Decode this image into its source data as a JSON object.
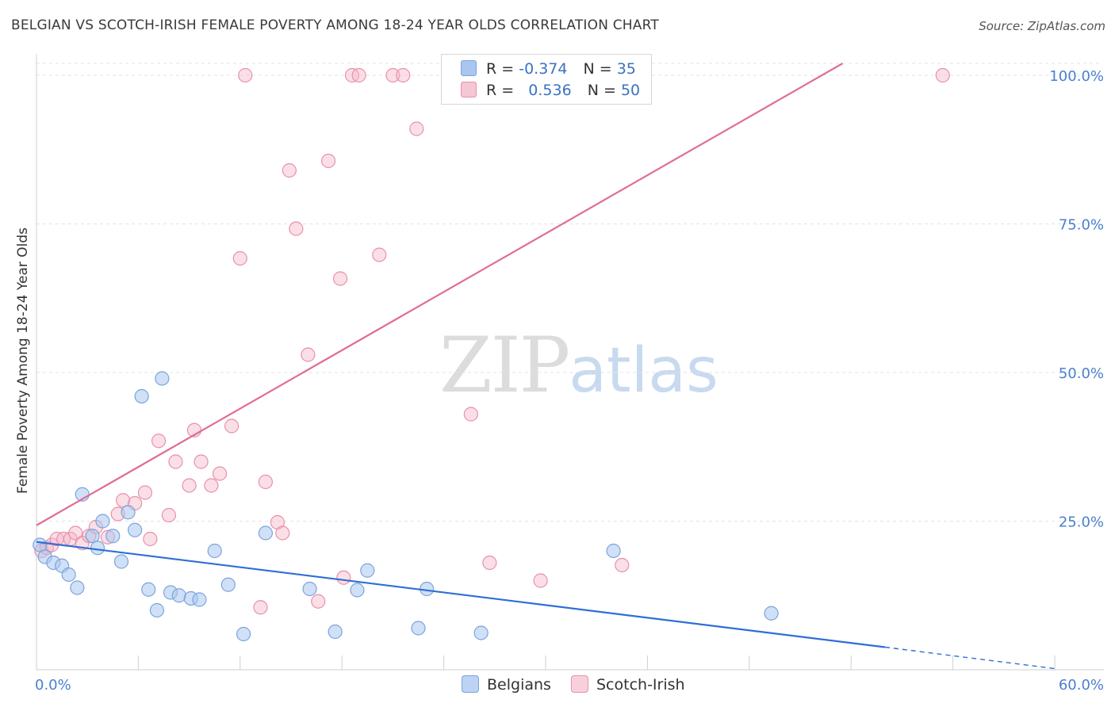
{
  "title": "BELGIAN VS SCOTCH-IRISH FEMALE POVERTY AMONG 18-24 YEAR OLDS CORRELATION CHART",
  "source": "Source: ZipAtlas.com",
  "watermark": {
    "zip": "ZIP",
    "atlas": "atlas"
  },
  "legend": {
    "r_label": "R =",
    "n_label": "N =",
    "rows": [
      {
        "r": "-0.374",
        "n": "35",
        "color": "#a9c6ef"
      },
      {
        "r": "0.536",
        "n": "50",
        "color": "#f5b7c9"
      }
    ]
  },
  "colors": {
    "belgian_fill": "#a9c6ef",
    "belgian_stroke": "#7aa4dc",
    "belgian_line": "#2e6fd2",
    "scotch_fill": "#f5b7c9",
    "scotch_stroke": "#e98fab",
    "scotch_line": "#e06d95"
  },
  "chart_data": {
    "type": "scatter",
    "title": "BELGIAN VS SCOTCH-IRISH FEMALE POVERTY AMONG 18-24 YEAR OLDS CORRELATION CHART",
    "xlabel": "",
    "ylabel": "Female Poverty Among 18-24 Year Olds",
    "xlim": [
      0,
      60
    ],
    "ylim": [
      0,
      102
    ],
    "x_tick_labels": [
      "0.0%",
      "60.0%"
    ],
    "y_ticks": [
      25,
      50,
      75,
      100
    ],
    "y_tick_labels": [
      "25.0%",
      "50.0%",
      "75.0%",
      "100.0%"
    ],
    "grid": true,
    "legend_position": "top-center",
    "series": [
      {
        "name": "Belgians",
        "r": -0.374,
        "n": 35,
        "trend": {
          "x0": 0,
          "y0": 21.5,
          "x1": 50,
          "y1": 3.8,
          "dashed_to_x": 60,
          "dashed_y1": 0.2
        },
        "points": [
          [
            0.2,
            21
          ],
          [
            0.5,
            19
          ],
          [
            1.0,
            18
          ],
          [
            1.5,
            17.5
          ],
          [
            1.9,
            16
          ],
          [
            2.4,
            13.8
          ],
          [
            2.7,
            29.5
          ],
          [
            3.3,
            22.5
          ],
          [
            3.6,
            20.5
          ],
          [
            3.9,
            25
          ],
          [
            4.5,
            22.5
          ],
          [
            5.0,
            18.2
          ],
          [
            5.4,
            26.5
          ],
          [
            5.8,
            23.5
          ],
          [
            6.2,
            46
          ],
          [
            6.6,
            13.5
          ],
          [
            7.1,
            10
          ],
          [
            7.4,
            49
          ],
          [
            7.9,
            13
          ],
          [
            8.4,
            12.5
          ],
          [
            9.1,
            12
          ],
          [
            9.6,
            11.8
          ],
          [
            10.5,
            20
          ],
          [
            11.3,
            14.3
          ],
          [
            12.2,
            6
          ],
          [
            13.5,
            23
          ],
          [
            16.1,
            13.6
          ],
          [
            17.6,
            6.4
          ],
          [
            18.9,
            13.4
          ],
          [
            19.5,
            16.7
          ],
          [
            22.5,
            7
          ],
          [
            23.0,
            13.6
          ],
          [
            26.2,
            6.2
          ],
          [
            34.0,
            20
          ],
          [
            43.3,
            9.5
          ]
        ]
      },
      {
        "name": "Scotch-Irish",
        "r": 0.536,
        "n": 50,
        "trend": {
          "x0": 0,
          "y0": 24.3,
          "x1": 47.5,
          "y1": 102
        },
        "points": [
          [
            0.3,
            20
          ],
          [
            0.6,
            20.5
          ],
          [
            0.9,
            21
          ],
          [
            1.2,
            22
          ],
          [
            1.6,
            22
          ],
          [
            2.0,
            22
          ],
          [
            2.3,
            23
          ],
          [
            2.7,
            21.3
          ],
          [
            3.1,
            22.5
          ],
          [
            3.5,
            24
          ],
          [
            4.2,
            22.3
          ],
          [
            4.8,
            26.2
          ],
          [
            5.1,
            28.5
          ],
          [
            5.8,
            28
          ],
          [
            6.4,
            29.8
          ],
          [
            6.7,
            22
          ],
          [
            7.2,
            38.5
          ],
          [
            7.8,
            26
          ],
          [
            8.2,
            35
          ],
          [
            9.0,
            31
          ],
          [
            9.3,
            40.3
          ],
          [
            9.7,
            35
          ],
          [
            10.3,
            31
          ],
          [
            10.8,
            33
          ],
          [
            11.5,
            41
          ],
          [
            12.0,
            69.2
          ],
          [
            12.3,
            100
          ],
          [
            13.2,
            10.5
          ],
          [
            13.5,
            31.6
          ],
          [
            14.2,
            24.8
          ],
          [
            14.5,
            23
          ],
          [
            14.9,
            84
          ],
          [
            15.3,
            74.2
          ],
          [
            16.0,
            53
          ],
          [
            16.6,
            11.5
          ],
          [
            17.2,
            85.6
          ],
          [
            17.9,
            65.8
          ],
          [
            18.1,
            15.5
          ],
          [
            18.6,
            100
          ],
          [
            19.0,
            100
          ],
          [
            20.2,
            69.8
          ],
          [
            21.0,
            100
          ],
          [
            21.6,
            100
          ],
          [
            22.4,
            91
          ],
          [
            25.6,
            43
          ],
          [
            26.7,
            18
          ],
          [
            27.6,
            100
          ],
          [
            29.7,
            15
          ],
          [
            34.5,
            17.6
          ],
          [
            53.4,
            100
          ]
        ]
      }
    ]
  },
  "bottom_legend": [
    {
      "name": "Belgians",
      "color": "#a9c6ef"
    },
    {
      "name": "Scotch-Irish",
      "color": "#f5b7c9"
    }
  ]
}
